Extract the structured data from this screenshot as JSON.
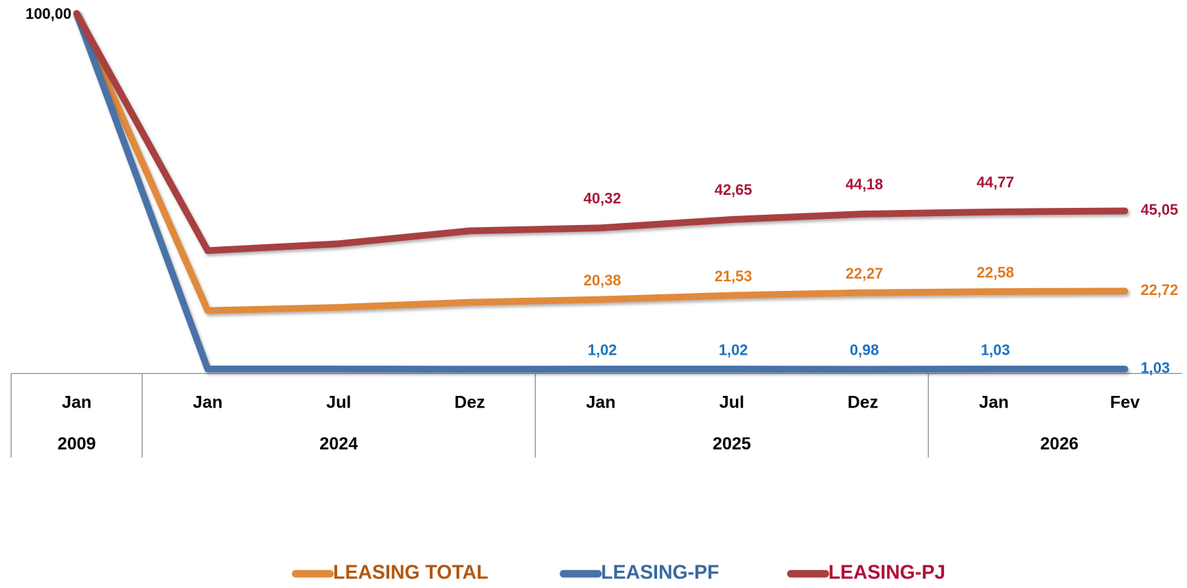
{
  "chart_data": {
    "type": "line",
    "categories": [
      "Jan",
      "Jan",
      "Jul",
      "Dez",
      "Jan",
      "Jul",
      "Dez",
      "Jan",
      "Fev"
    ],
    "x_groups": [
      {
        "label": "2009",
        "count": 1
      },
      {
        "label": "2024",
        "count": 3
      },
      {
        "label": "2025",
        "count": 3
      },
      {
        "label": "2026",
        "count": 2
      }
    ],
    "ylim": [
      0,
      100
    ],
    "series": [
      {
        "name": "LEASING TOTAL",
        "color": "#e08a3c",
        "label_color": "#e07a1e",
        "legend_text_color": "#b25812",
        "values": [
          100,
          17.3,
          18.2,
          19.6,
          20.38,
          21.53,
          22.27,
          22.58,
          22.72
        ],
        "value_labels": [
          "100,00",
          null,
          null,
          null,
          "20,38",
          "21,53",
          "22,27",
          "22,58",
          "22,72"
        ]
      },
      {
        "name": "LEASING-PF",
        "color": "#4a72a8",
        "label_color": "#1c72bf",
        "legend_text_color": "#3a6aa0",
        "values": [
          100,
          1.05,
          1.04,
          0.99,
          1.02,
          1.02,
          0.98,
          1.03,
          1.03
        ],
        "value_labels": [
          null,
          null,
          null,
          null,
          "1,02",
          "1,02",
          "0,98",
          "1,03",
          "1,03"
        ]
      },
      {
        "name": "LEASING-PJ",
        "color": "#a84040",
        "label_color": "#a8173a",
        "legend_text_color": "#b0103a",
        "values": [
          100,
          34.0,
          35.9,
          39.5,
          40.32,
          42.65,
          44.18,
          44.77,
          45.05
        ],
        "value_labels": [
          null,
          null,
          null,
          null,
          "40,32",
          "42,65",
          "44,18",
          "44,77",
          "45,05"
        ]
      }
    ]
  }
}
